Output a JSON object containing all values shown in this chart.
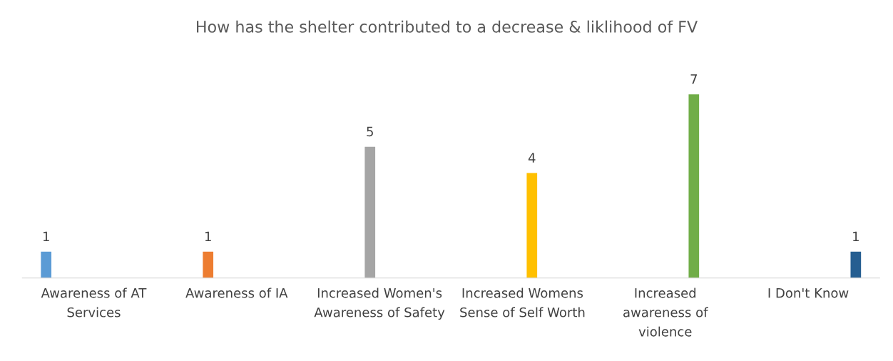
{
  "chart_data": {
    "type": "bar",
    "title": "How has the shelter contributed to a decrease & liklihood of FV",
    "categories": [
      "Awareness of AT\nServices",
      "Awareness of IA",
      "Increased Women's\nAwareness of Safety",
      "Increased Womens\nSense of Self Worth",
      "Increased\nawareness of\nviolence",
      "I Don't Know"
    ],
    "series": [
      {
        "color": "#5b9bd5",
        "values": [
          1,
          null,
          null,
          null,
          null,
          null
        ]
      },
      {
        "color": "#ed7d31",
        "values": [
          null,
          1,
          null,
          null,
          null,
          null
        ]
      },
      {
        "color": "#a5a5a5",
        "values": [
          null,
          null,
          5,
          null,
          null,
          null
        ]
      },
      {
        "color": "#ffc000",
        "values": [
          null,
          null,
          null,
          4,
          null,
          null
        ]
      },
      {
        "color": "#70ad47",
        "values": [
          null,
          null,
          null,
          null,
          7,
          null
        ]
      },
      {
        "color": "#255e91",
        "values": [
          null,
          null,
          null,
          null,
          null,
          1
        ]
      }
    ],
    "data_labels": true,
    "grid": false,
    "legend": false
  }
}
